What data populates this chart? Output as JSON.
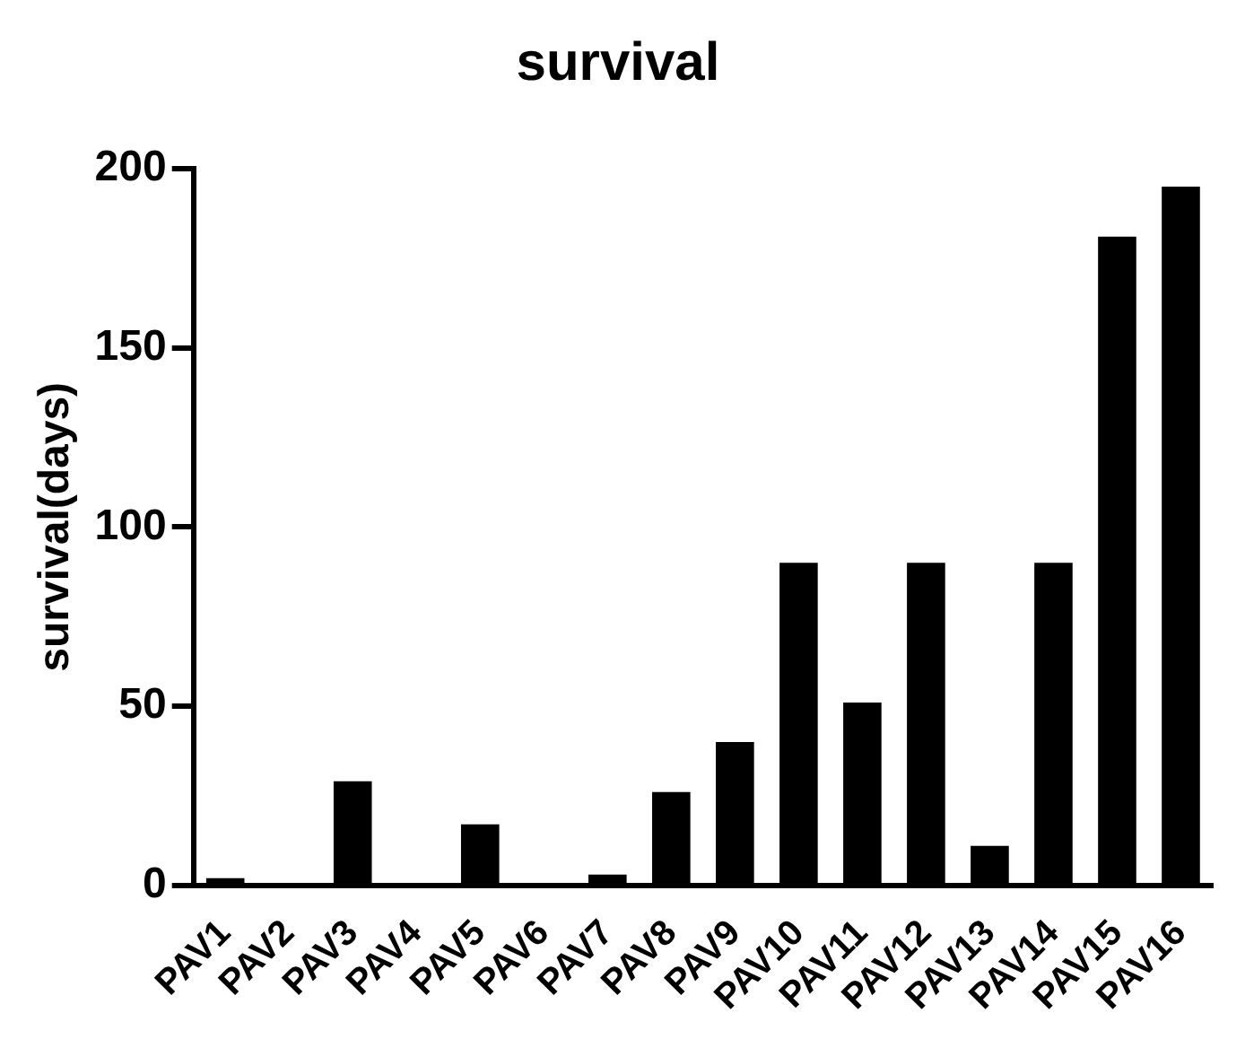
{
  "chart_data": {
    "type": "bar",
    "title": "survival",
    "ylabel": "survival(days)",
    "categories": [
      "PAV1",
      "PAV2",
      "PAV3",
      "PAV4",
      "PAV5",
      "PAV6",
      "PAV7",
      "PAV8",
      "PAV9",
      "PAV10",
      "PAV11",
      "PAV12",
      "PAV13",
      "PAV14",
      "PAV15",
      "PAV16"
    ],
    "values": [
      2,
      0,
      29,
      0,
      17,
      0,
      3,
      26,
      40,
      90,
      51,
      90,
      11,
      90,
      181,
      195
    ],
    "color": "#000000",
    "ylim": [
      0,
      200
    ],
    "yticks": [
      0,
      50,
      100,
      150,
      200
    ],
    "grid": false,
    "legend": false
  }
}
